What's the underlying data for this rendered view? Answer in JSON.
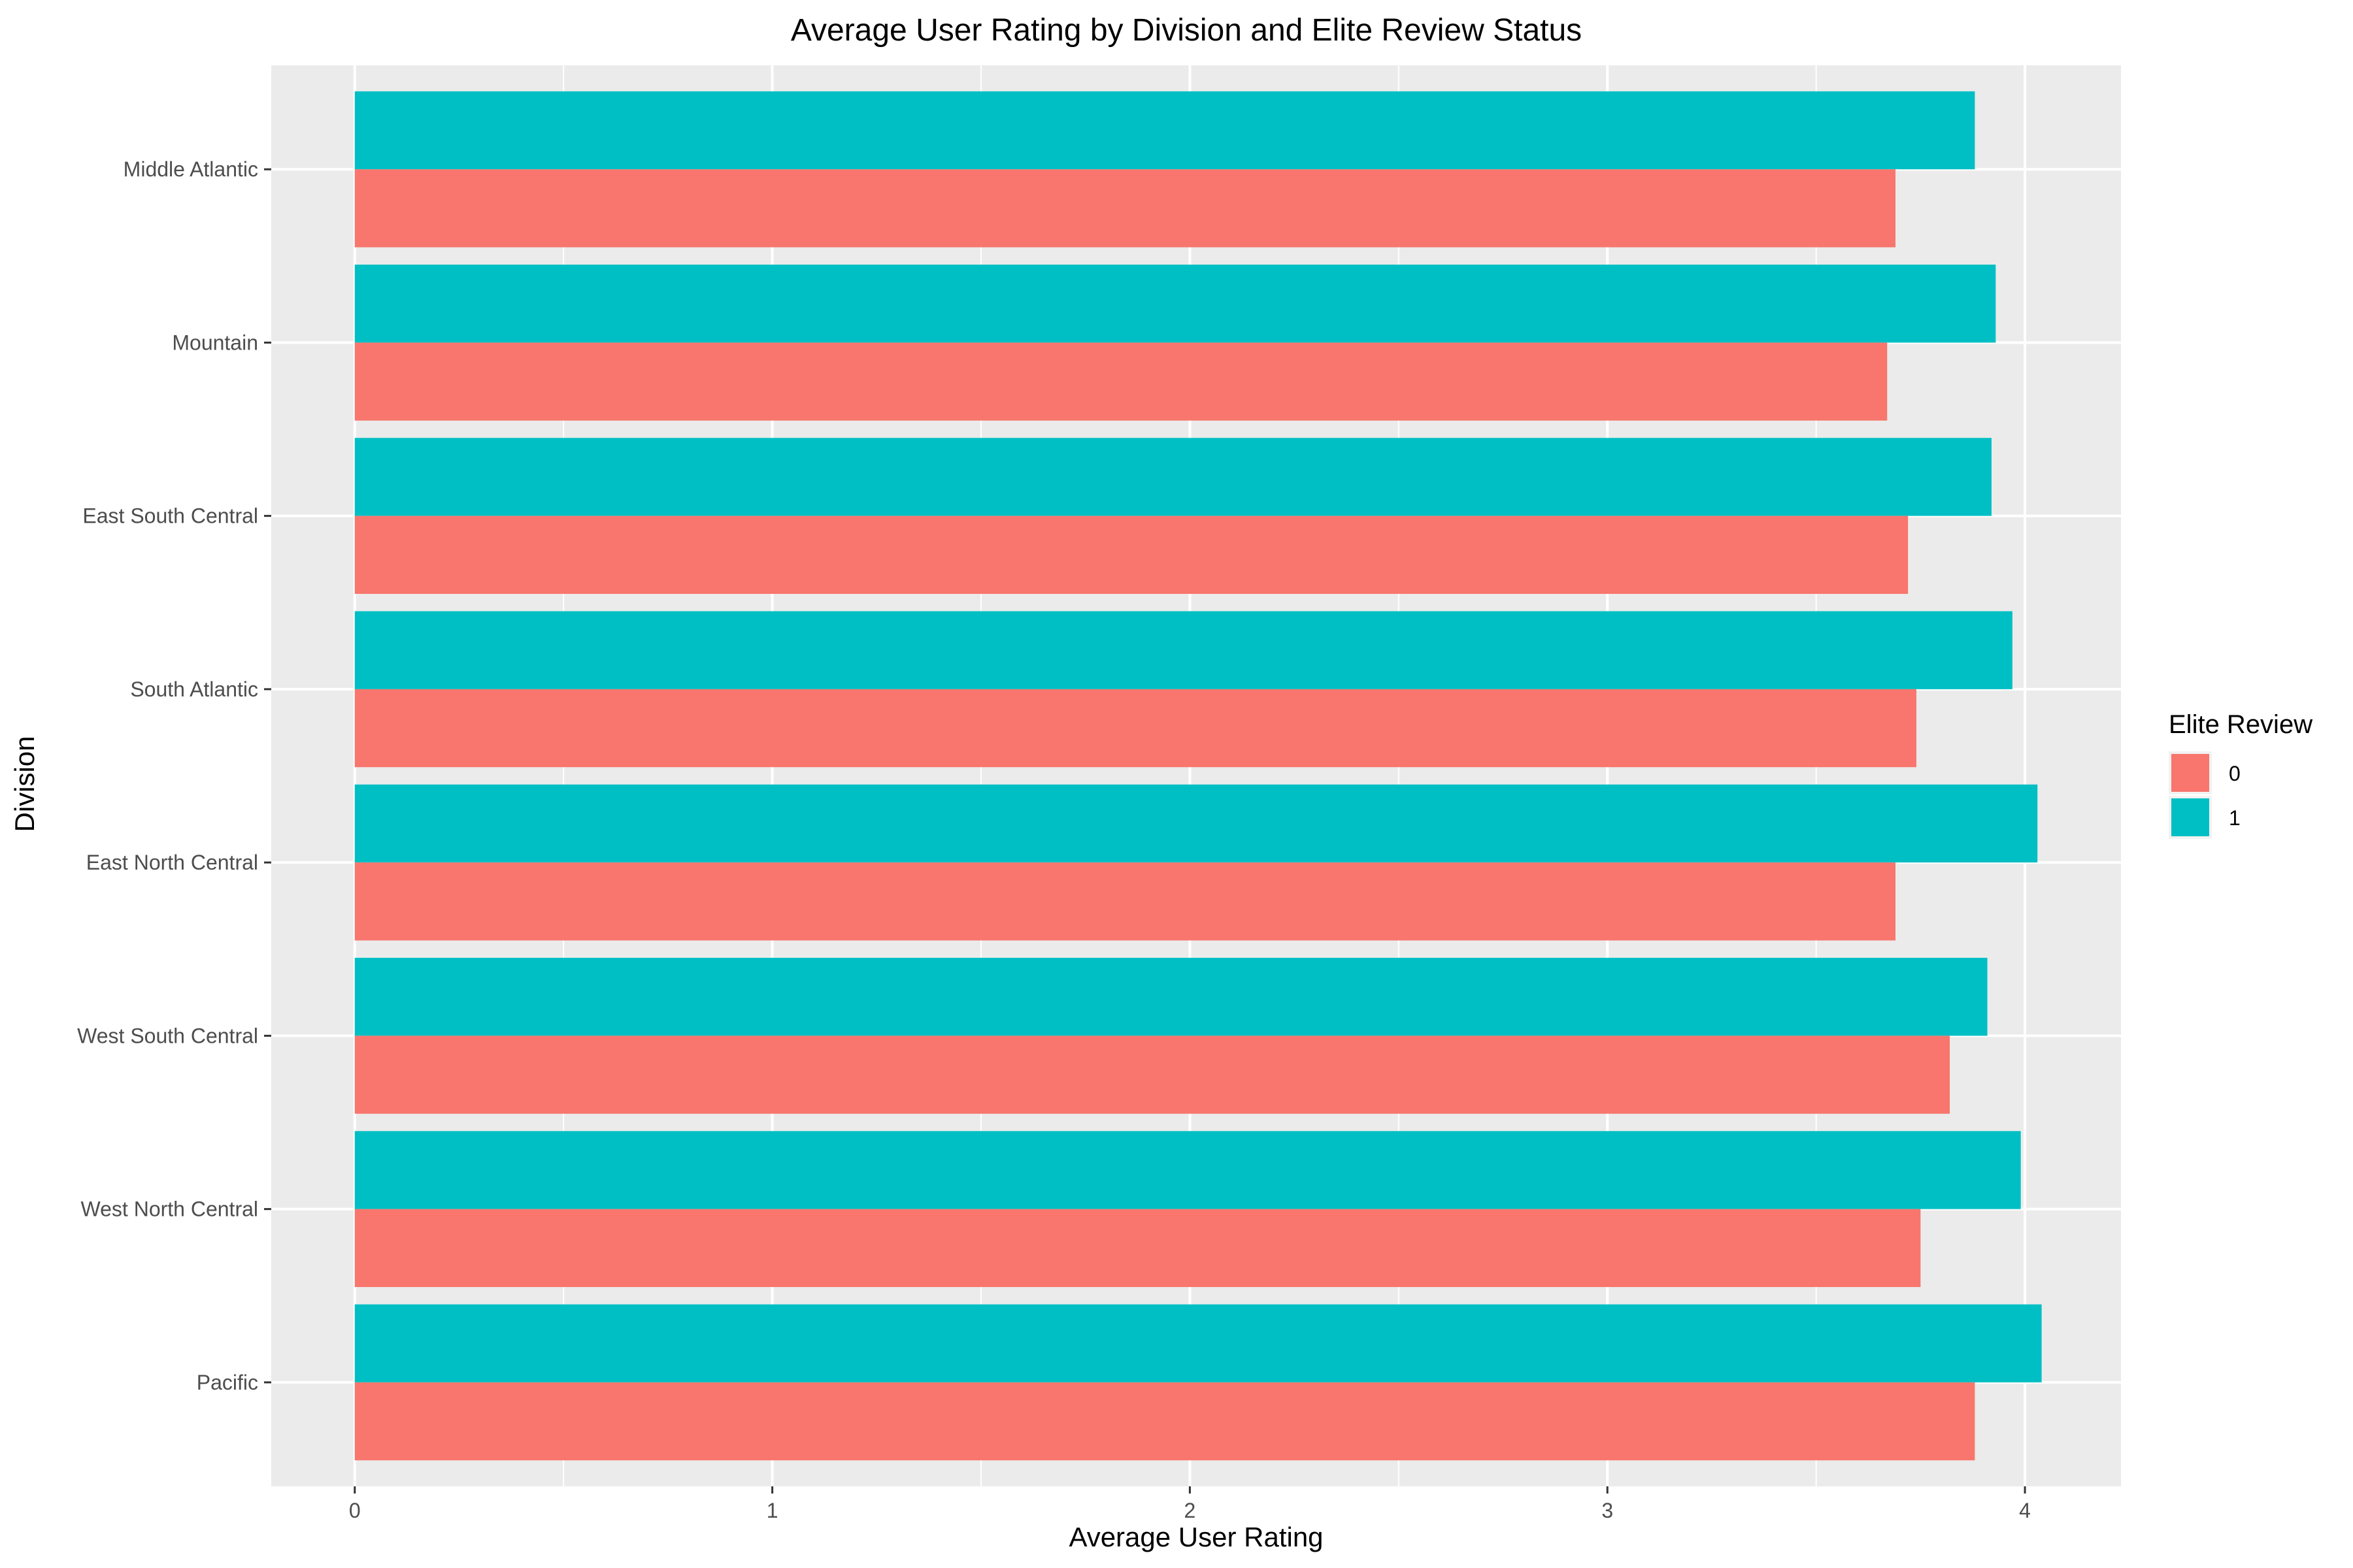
{
  "chart_data": {
    "type": "bar",
    "orientation": "horizontal",
    "title": "Average User Rating by Division and Elite Review Status",
    "xlabel": "Average User Rating",
    "ylabel": "Division",
    "xlim": [
      -0.2,
      4.23
    ],
    "x_ticks": [
      "0",
      "1",
      "2",
      "3",
      "4"
    ],
    "grid": true,
    "legend": {
      "title": "Elite Review",
      "position": "right"
    },
    "categories": [
      "Middle Atlantic",
      "Mountain",
      "East South Central",
      "South Atlantic",
      "East North Central",
      "West South Central",
      "West North Central",
      "Pacific"
    ],
    "series": [
      {
        "name": "0",
        "color": "#F8766D",
        "values": [
          3.69,
          3.67,
          3.72,
          3.74,
          3.69,
          3.82,
          3.75,
          3.88
        ]
      },
      {
        "name": "1",
        "color": "#00BFC4",
        "values": [
          3.88,
          3.93,
          3.92,
          3.97,
          4.03,
          3.91,
          3.99,
          4.04
        ]
      }
    ]
  }
}
